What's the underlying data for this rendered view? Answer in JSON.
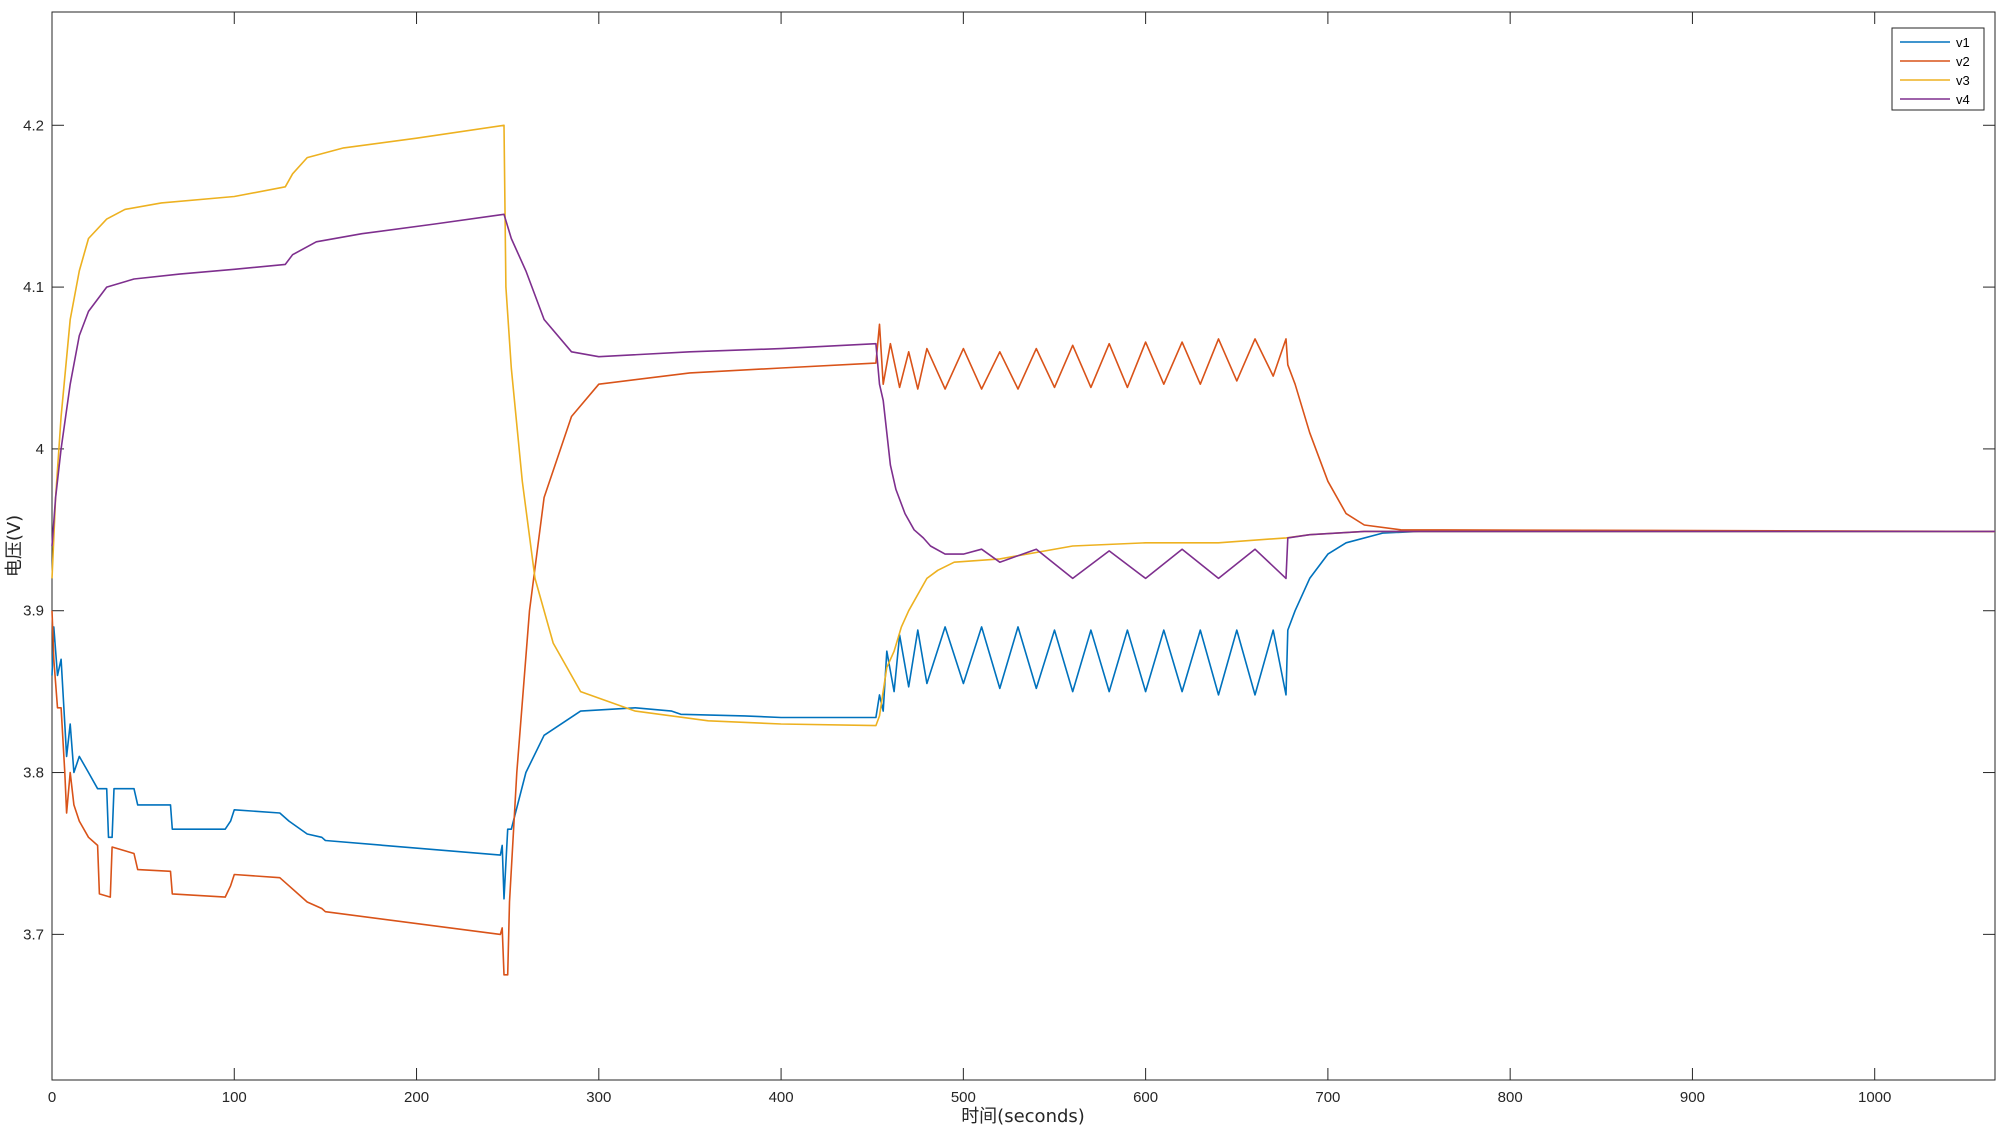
{
  "chart_data": {
    "type": "line",
    "title": "",
    "xlabel": "时间(seconds)",
    "ylabel": "电压(V)",
    "xlim": [
      0,
      1066
    ],
    "ylim": [
      3.61,
      4.27
    ],
    "xticks": [
      0,
      100,
      200,
      300,
      400,
      500,
      600,
      700,
      800,
      900,
      1000
    ],
    "xtick_labels": [
      "0",
      "100",
      "200",
      "300",
      "400",
      "500",
      "600",
      "700",
      "800",
      "900",
      "1000"
    ],
    "yticks": [
      3.7,
      3.8,
      3.9,
      4.0,
      4.1,
      4.2
    ],
    "ytick_labels": [
      "3.7",
      "3.8",
      "3.9",
      "4",
      "4.1",
      "4.2"
    ],
    "grid": false,
    "legend_position": "top-right",
    "series": [
      {
        "name": "v1",
        "color": "#0072BD",
        "points": [
          [
            0,
            3.86
          ],
          [
            1,
            3.89
          ],
          [
            3,
            3.86
          ],
          [
            5,
            3.87
          ],
          [
            7,
            3.83
          ],
          [
            8,
            3.81
          ],
          [
            10,
            3.83
          ],
          [
            12,
            3.8
          ],
          [
            15,
            3.81
          ],
          [
            20,
            3.8
          ],
          [
            25,
            3.79
          ],
          [
            30,
            3.79
          ],
          [
            31,
            3.76
          ],
          [
            33,
            3.76
          ],
          [
            34,
            3.79
          ],
          [
            45,
            3.79
          ],
          [
            47,
            3.78
          ],
          [
            65,
            3.78
          ],
          [
            66,
            3.765
          ],
          [
            95,
            3.765
          ],
          [
            98,
            3.77
          ],
          [
            100,
            3.777
          ],
          [
            125,
            3.775
          ],
          [
            130,
            3.77
          ],
          [
            140,
            3.762
          ],
          [
            148,
            3.76
          ],
          [
            150,
            3.758
          ],
          [
            246,
            3.749
          ],
          [
            247,
            3.755
          ],
          [
            248,
            3.722
          ],
          [
            250,
            3.765
          ],
          [
            252,
            3.765
          ],
          [
            260,
            3.8
          ],
          [
            270,
            3.823
          ],
          [
            290,
            3.838
          ],
          [
            320,
            3.84
          ],
          [
            340,
            3.838
          ],
          [
            345,
            3.836
          ],
          [
            380,
            3.835
          ],
          [
            400,
            3.834
          ],
          [
            452,
            3.834
          ],
          [
            454,
            3.848
          ],
          [
            456,
            3.838
          ],
          [
            458,
            3.875
          ],
          [
            462,
            3.85
          ],
          [
            465,
            3.885
          ],
          [
            470,
            3.853
          ],
          [
            475,
            3.888
          ],
          [
            480,
            3.855
          ],
          [
            490,
            3.89
          ],
          [
            500,
            3.855
          ],
          [
            510,
            3.89
          ],
          [
            520,
            3.852
          ],
          [
            530,
            3.89
          ],
          [
            540,
            3.852
          ],
          [
            550,
            3.888
          ],
          [
            560,
            3.85
          ],
          [
            570,
            3.888
          ],
          [
            580,
            3.85
          ],
          [
            590,
            3.888
          ],
          [
            600,
            3.85
          ],
          [
            610,
            3.888
          ],
          [
            620,
            3.85
          ],
          [
            630,
            3.888
          ],
          [
            640,
            3.848
          ],
          [
            650,
            3.888
          ],
          [
            660,
            3.848
          ],
          [
            670,
            3.888
          ],
          [
            677,
            3.848
          ],
          [
            678,
            3.888
          ],
          [
            682,
            3.9
          ],
          [
            690,
            3.92
          ],
          [
            700,
            3.935
          ],
          [
            710,
            3.942
          ],
          [
            730,
            3.948
          ],
          [
            750,
            3.949
          ],
          [
            1066,
            3.949
          ]
        ]
      },
      {
        "name": "v2",
        "color": "#D95319",
        "points": [
          [
            0,
            3.9
          ],
          [
            1,
            3.87
          ],
          [
            3,
            3.84
          ],
          [
            5,
            3.84
          ],
          [
            7,
            3.8
          ],
          [
            8,
            3.775
          ],
          [
            10,
            3.8
          ],
          [
            12,
            3.78
          ],
          [
            15,
            3.77
          ],
          [
            20,
            3.76
          ],
          [
            25,
            3.755
          ],
          [
            26,
            3.725
          ],
          [
            32,
            3.723
          ],
          [
            33,
            3.754
          ],
          [
            45,
            3.75
          ],
          [
            47,
            3.74
          ],
          [
            65,
            3.739
          ],
          [
            66,
            3.725
          ],
          [
            95,
            3.723
          ],
          [
            98,
            3.73
          ],
          [
            100,
            3.737
          ],
          [
            125,
            3.735
          ],
          [
            130,
            3.73
          ],
          [
            140,
            3.72
          ],
          [
            148,
            3.716
          ],
          [
            150,
            3.714
          ],
          [
            246,
            3.7
          ],
          [
            247,
            3.704
          ],
          [
            248,
            3.675
          ],
          [
            250,
            3.675
          ],
          [
            251,
            3.72
          ],
          [
            255,
            3.8
          ],
          [
            262,
            3.9
          ],
          [
            270,
            3.97
          ],
          [
            285,
            4.02
          ],
          [
            300,
            4.04
          ],
          [
            350,
            4.047
          ],
          [
            400,
            4.05
          ],
          [
            452,
            4.053
          ],
          [
            454,
            4.077
          ],
          [
            456,
            4.04
          ],
          [
            460,
            4.065
          ],
          [
            465,
            4.038
          ],
          [
            470,
            4.06
          ],
          [
            475,
            4.037
          ],
          [
            480,
            4.062
          ],
          [
            490,
            4.037
          ],
          [
            500,
            4.062
          ],
          [
            510,
            4.037
          ],
          [
            520,
            4.06
          ],
          [
            530,
            4.037
          ],
          [
            540,
            4.062
          ],
          [
            550,
            4.038
          ],
          [
            560,
            4.064
          ],
          [
            570,
            4.038
          ],
          [
            580,
            4.065
          ],
          [
            590,
            4.038
          ],
          [
            600,
            4.066
          ],
          [
            610,
            4.04
          ],
          [
            620,
            4.066
          ],
          [
            630,
            4.04
          ],
          [
            640,
            4.068
          ],
          [
            650,
            4.042
          ],
          [
            660,
            4.068
          ],
          [
            670,
            4.045
          ],
          [
            677,
            4.068
          ],
          [
            678,
            4.052
          ],
          [
            682,
            4.04
          ],
          [
            690,
            4.01
          ],
          [
            700,
            3.98
          ],
          [
            710,
            3.96
          ],
          [
            720,
            3.953
          ],
          [
            740,
            3.95
          ],
          [
            1066,
            3.949
          ]
        ]
      },
      {
        "name": "v3",
        "color": "#EDB120",
        "points": [
          [
            0,
            3.92
          ],
          [
            2,
            3.97
          ],
          [
            5,
            4.02
          ],
          [
            10,
            4.08
          ],
          [
            15,
            4.11
          ],
          [
            20,
            4.13
          ],
          [
            30,
            4.142
          ],
          [
            40,
            4.148
          ],
          [
            60,
            4.152
          ],
          [
            100,
            4.156
          ],
          [
            128,
            4.162
          ],
          [
            132,
            4.17
          ],
          [
            140,
            4.18
          ],
          [
            160,
            4.186
          ],
          [
            200,
            4.192
          ],
          [
            248,
            4.2
          ],
          [
            249,
            4.1
          ],
          [
            252,
            4.05
          ],
          [
            258,
            3.98
          ],
          [
            265,
            3.92
          ],
          [
            275,
            3.88
          ],
          [
            290,
            3.85
          ],
          [
            320,
            3.838
          ],
          [
            360,
            3.832
          ],
          [
            400,
            3.83
          ],
          [
            452,
            3.829
          ],
          [
            454,
            3.835
          ],
          [
            458,
            3.865
          ],
          [
            462,
            3.875
          ],
          [
            466,
            3.89
          ],
          [
            470,
            3.9
          ],
          [
            475,
            3.91
          ],
          [
            480,
            3.92
          ],
          [
            486,
            3.925
          ],
          [
            495,
            3.93
          ],
          [
            520,
            3.932
          ],
          [
            560,
            3.94
          ],
          [
            600,
            3.942
          ],
          [
            640,
            3.942
          ],
          [
            677,
            3.945
          ],
          [
            690,
            3.947
          ],
          [
            720,
            3.949
          ],
          [
            1066,
            3.949
          ]
        ]
      },
      {
        "name": "v4",
        "color": "#7E2F8E",
        "points": [
          [
            0,
            3.94
          ],
          [
            2,
            3.97
          ],
          [
            5,
            4.0
          ],
          [
            10,
            4.04
          ],
          [
            15,
            4.07
          ],
          [
            20,
            4.085
          ],
          [
            30,
            4.1
          ],
          [
            45,
            4.105
          ],
          [
            70,
            4.108
          ],
          [
            100,
            4.111
          ],
          [
            128,
            4.114
          ],
          [
            132,
            4.12
          ],
          [
            145,
            4.128
          ],
          [
            170,
            4.133
          ],
          [
            210,
            4.139
          ],
          [
            248,
            4.145
          ],
          [
            252,
            4.13
          ],
          [
            260,
            4.11
          ],
          [
            270,
            4.08
          ],
          [
            285,
            4.06
          ],
          [
            300,
            4.057
          ],
          [
            350,
            4.06
          ],
          [
            400,
            4.062
          ],
          [
            452,
            4.065
          ],
          [
            454,
            4.04
          ],
          [
            456,
            4.03
          ],
          [
            460,
            3.99
          ],
          [
            463,
            3.975
          ],
          [
            468,
            3.96
          ],
          [
            473,
            3.95
          ],
          [
            478,
            3.945
          ],
          [
            482,
            3.94
          ],
          [
            490,
            3.935
          ],
          [
            500,
            3.935
          ],
          [
            510,
            3.938
          ],
          [
            520,
            3.93
          ],
          [
            540,
            3.938
          ],
          [
            560,
            3.92
          ],
          [
            580,
            3.937
          ],
          [
            600,
            3.92
          ],
          [
            620,
            3.938
          ],
          [
            640,
            3.92
          ],
          [
            660,
            3.938
          ],
          [
            677,
            3.92
          ],
          [
            678,
            3.945
          ],
          [
            690,
            3.947
          ],
          [
            720,
            3.949
          ],
          [
            1066,
            3.949
          ]
        ]
      }
    ]
  }
}
